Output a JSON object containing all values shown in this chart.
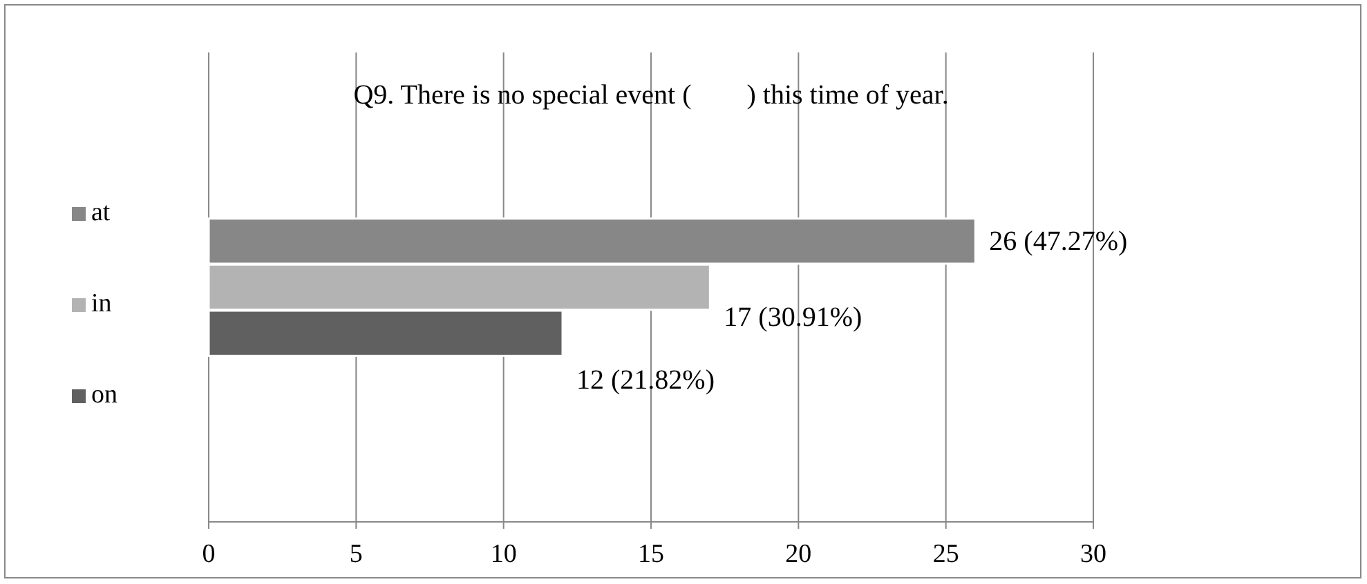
{
  "chart_data": {
    "type": "bar",
    "orientation": "horizontal",
    "title": "Q9. There is no special event (　　) this time of year.",
    "categories": [
      null
    ],
    "series": [
      {
        "name": "at",
        "color": "#878787",
        "values": [
          26
        ],
        "value_labels": [
          "26 (47.27%)"
        ]
      },
      {
        "name": "in",
        "color": "#b3b3b3",
        "values": [
          17
        ],
        "value_labels": [
          "17 (30.91%)"
        ]
      },
      {
        "name": "on",
        "color": "#606060",
        "values": [
          12
        ],
        "value_labels": [
          "12 (21.82%)"
        ]
      }
    ],
    "xlim": [
      0,
      30
    ],
    "xticks": [
      0,
      5,
      10,
      15,
      20,
      25,
      30
    ],
    "grid": "x",
    "legend": "left"
  }
}
